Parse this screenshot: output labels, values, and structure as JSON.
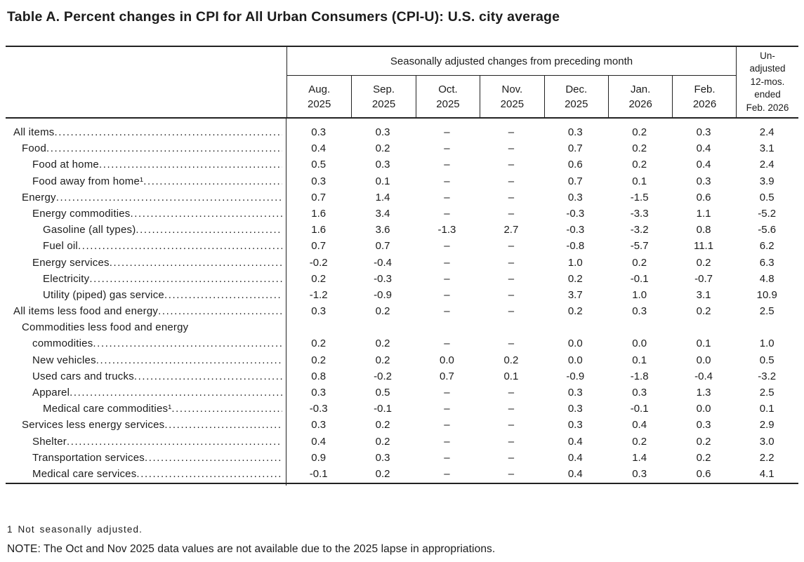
{
  "title": "Table A. Percent changes in CPI for All Urban Consumers (CPI-U): U.S. city average",
  "table": {
    "spanner": "Seasonally adjusted changes from preceding month",
    "unadjusted_header_lines": [
      "Un-",
      "adjusted",
      "12-mos.",
      "ended",
      "Feb. 2026"
    ],
    "month_headers": [
      {
        "month": "Aug.",
        "year": "2025"
      },
      {
        "month": "Sep.",
        "year": "2025"
      },
      {
        "month": "Oct.",
        "year": "2025"
      },
      {
        "month": "Nov.",
        "year": "2025"
      },
      {
        "month": "Dec.",
        "year": "2025"
      },
      {
        "month": "Jan.",
        "year": "2026"
      },
      {
        "month": "Feb.",
        "year": "2026"
      }
    ],
    "rows": [
      {
        "label": "All items",
        "indent": 0,
        "values": [
          "0.3",
          "0.3",
          "–",
          "–",
          "0.3",
          "0.2",
          "0.3",
          "2.4"
        ]
      },
      {
        "label": "Food",
        "indent": 1,
        "values": [
          "0.4",
          "0.2",
          "–",
          "–",
          "0.7",
          "0.2",
          "0.4",
          "3.1"
        ]
      },
      {
        "label": "Food at home",
        "indent": 2,
        "values": [
          "0.5",
          "0.3",
          "–",
          "–",
          "0.6",
          "0.2",
          "0.4",
          "2.4"
        ]
      },
      {
        "label": "Food away from home¹",
        "indent": 2,
        "values": [
          "0.3",
          "0.1",
          "–",
          "–",
          "0.7",
          "0.1",
          "0.3",
          "3.9"
        ]
      },
      {
        "label": "Energy",
        "indent": 1,
        "values": [
          "0.7",
          "1.4",
          "–",
          "–",
          "0.3",
          "-1.5",
          "0.6",
          "0.5"
        ]
      },
      {
        "label": "Energy commodities",
        "indent": 2,
        "values": [
          "1.6",
          "3.4",
          "–",
          "–",
          "-0.3",
          "-3.3",
          "1.1",
          "-5.2"
        ]
      },
      {
        "label": "Gasoline (all types)",
        "indent": 3,
        "values": [
          "1.6",
          "3.6",
          "-1.3",
          "2.7",
          "-0.3",
          "-3.2",
          "0.8",
          "-5.6"
        ]
      },
      {
        "label": "Fuel oil",
        "indent": 3,
        "values": [
          "0.7",
          "0.7",
          "–",
          "–",
          "-0.8",
          "-5.7",
          "11.1",
          "6.2"
        ]
      },
      {
        "label": "Energy services",
        "indent": 2,
        "values": [
          "-0.2",
          "-0.4",
          "–",
          "–",
          "1.0",
          "0.2",
          "0.2",
          "6.3"
        ]
      },
      {
        "label": "Electricity",
        "indent": 3,
        "values": [
          "0.2",
          "-0.3",
          "–",
          "–",
          "0.2",
          "-0.1",
          "-0.7",
          "4.8"
        ]
      },
      {
        "label": "Utility (piped) gas service",
        "indent": 3,
        "values": [
          "-1.2",
          "-0.9",
          "–",
          "–",
          "3.7",
          "1.0",
          "3.1",
          "10.9"
        ]
      },
      {
        "label": "All items less food and energy",
        "indent": 0,
        "values": [
          "0.3",
          "0.2",
          "–",
          "–",
          "0.2",
          "0.3",
          "0.2",
          "2.5"
        ]
      },
      {
        "label": "Commodities less food and energy",
        "indent": 1,
        "label2": "commodities",
        "indent2": 2,
        "values": [
          "0.2",
          "0.2",
          "–",
          "–",
          "0.0",
          "0.0",
          "0.1",
          "1.0"
        ]
      },
      {
        "label": "New vehicles",
        "indent": 2,
        "values": [
          "0.2",
          "0.2",
          "0.0",
          "0.2",
          "0.0",
          "0.1",
          "0.0",
          "0.5"
        ]
      },
      {
        "label": "Used cars and trucks",
        "indent": 2,
        "values": [
          "0.8",
          "-0.2",
          "0.7",
          "0.1",
          "-0.9",
          "-1.8",
          "-0.4",
          "-3.2"
        ]
      },
      {
        "label": "Apparel",
        "indent": 2,
        "values": [
          "0.3",
          "0.5",
          "–",
          "–",
          "0.3",
          "0.3",
          "1.3",
          "2.5"
        ]
      },
      {
        "label": "Medical care commodities¹",
        "indent": 3,
        "values": [
          "-0.3",
          "-0.1",
          "–",
          "–",
          "0.3",
          "-0.1",
          "0.0",
          "0.1"
        ]
      },
      {
        "label": "Services less energy services",
        "indent": 1,
        "values": [
          "0.3",
          "0.2",
          "–",
          "–",
          "0.3",
          "0.4",
          "0.3",
          "2.9"
        ]
      },
      {
        "label": "Shelter",
        "indent": 2,
        "values": [
          "0.4",
          "0.2",
          "–",
          "–",
          "0.4",
          "0.2",
          "0.2",
          "3.0"
        ]
      },
      {
        "label": "Transportation services",
        "indent": 2,
        "values": [
          "0.9",
          "0.3",
          "–",
          "–",
          "0.4",
          "1.4",
          "0.2",
          "2.2"
        ]
      },
      {
        "label": "Medical care services",
        "indent": 2,
        "values": [
          "-0.1",
          "0.2",
          "–",
          "–",
          "0.4",
          "0.3",
          "0.6",
          "4.1"
        ]
      }
    ]
  },
  "footnotes": {
    "footnote1": "1 Not seasonally adjusted.",
    "note": "NOTE: The Oct and Nov 2025 data values are not available due to the 2025 lapse in appropriations."
  }
}
